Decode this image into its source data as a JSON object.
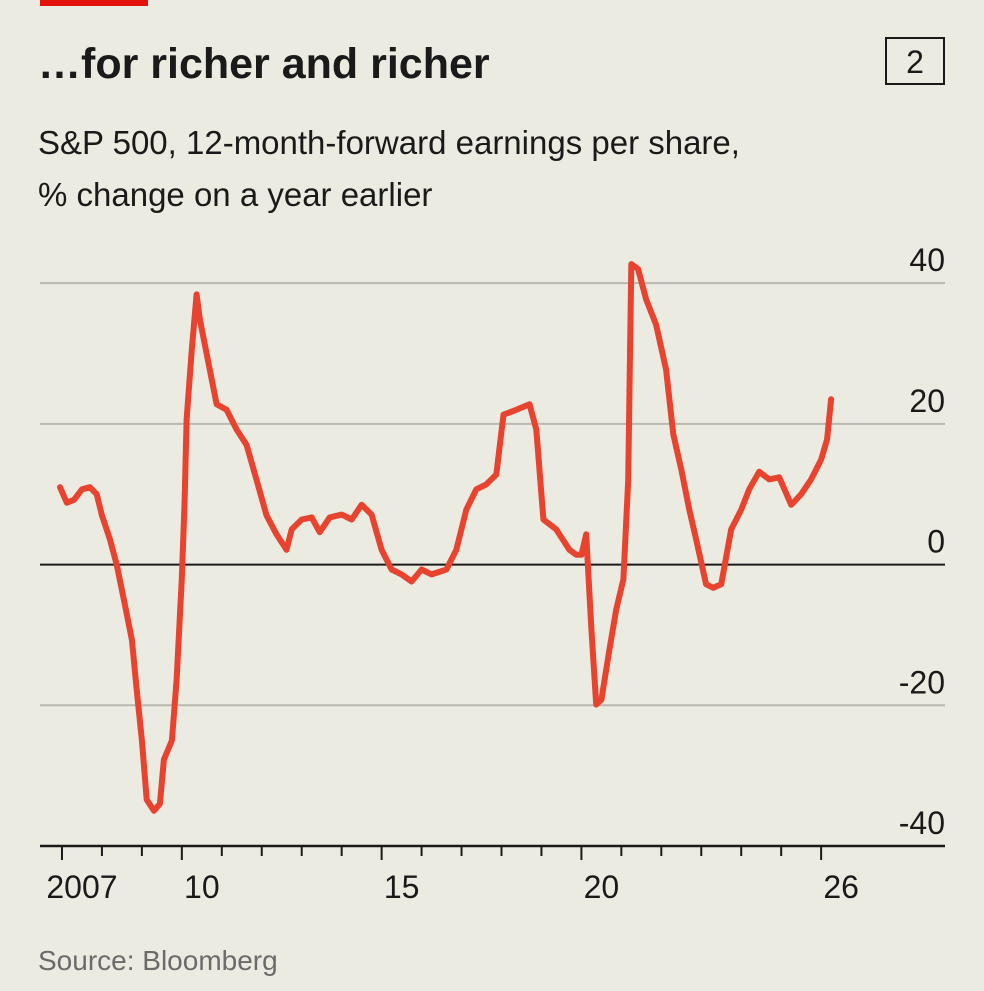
{
  "chart_data": {
    "type": "line",
    "title": "…for richer and richer",
    "badge": "2",
    "subtitle": [
      "S&P 500, 12-month-forward earnings per share,",
      "% change on a year earlier"
    ],
    "source": "Source: Bloomberg",
    "color": "#e8432e",
    "x": [
      2006.95,
      2007.12,
      2007.3,
      2007.5,
      2007.7,
      2007.87,
      2008.0,
      2008.2,
      2008.37,
      2008.55,
      2008.75,
      2008.87,
      2009.0,
      2009.12,
      2009.3,
      2009.45,
      2009.55,
      2009.75,
      2009.87,
      2010.0,
      2010.07,
      2010.12,
      2010.25,
      2010.37,
      2010.45,
      2010.55,
      2010.7,
      2010.87,
      2011.12,
      2011.37,
      2011.62,
      2011.87,
      2012.12,
      2012.37,
      2012.62,
      2012.75,
      2013.0,
      2013.25,
      2013.45,
      2013.7,
      2014.0,
      2014.25,
      2014.5,
      2014.75,
      2015.0,
      2015.25,
      2015.5,
      2015.75,
      2016.0,
      2016.25,
      2016.62,
      2016.87,
      2017.12,
      2017.37,
      2017.62,
      2017.87,
      2018.05,
      2018.37,
      2018.7,
      2018.87,
      2019.05,
      2019.37,
      2019.7,
      2019.87,
      2020.0,
      2020.12,
      2020.25,
      2020.37,
      2020.5,
      2020.7,
      2020.87,
      2021.05,
      2021.17,
      2021.25,
      2021.42,
      2021.62,
      2021.87,
      2022.12,
      2022.3,
      2022.5,
      2022.7,
      2022.87,
      2023.12,
      2023.3,
      2023.5,
      2023.75,
      2024.0,
      2024.2,
      2024.45,
      2024.7,
      2024.95,
      2025.25,
      2025.5,
      2025.75,
      2026.0,
      2026.15,
      2026.25
    ],
    "values": [
      11,
      8.8,
      9.2,
      10.7,
      11,
      10,
      7,
      3.6,
      0,
      -5,
      -10.7,
      -17.8,
      -25,
      -33.4,
      -35,
      -34,
      -27.7,
      -25,
      -16.4,
      -2,
      9,
      20.6,
      30.6,
      38.4,
      34.9,
      32,
      27.7,
      22.8,
      22,
      19.2,
      17,
      12,
      7,
      4.3,
      2.1,
      5,
      6.4,
      6.7,
      4.6,
      6.7,
      7.1,
      6.4,
      8.5,
      7.1,
      2.1,
      -0.7,
      -1.4,
      -2.4,
      -0.7,
      -1.4,
      -0.7,
      2.1,
      7.8,
      10.7,
      11.4,
      12.8,
      21.3,
      22,
      22.8,
      19.2,
      6.4,
      5,
      2.1,
      1.4,
      1.4,
      4.3,
      -9.2,
      -19.9,
      -19.2,
      -12.1,
      -6.4,
      -2.1,
      12,
      42.7,
      42,
      37.7,
      34.1,
      27.7,
      18.5,
      13.5,
      7.8,
      3.6,
      -2.8,
      -3.3,
      -2.8,
      5,
      7.8,
      10.7,
      13.2,
      12.1,
      12.4,
      8.5,
      10,
      12.1,
      14.9,
      17.8,
      23.5
    ],
    "xlim": [
      2006.45,
      2029.1
    ],
    "xticks": [
      2007,
      {
        "value": 2010,
        "label": "10"
      },
      {
        "value": 2015,
        "label": "15"
      },
      {
        "value": 2020,
        "label": "20"
      },
      {
        "value": 2026,
        "label": "26"
      }
    ],
    "xminorticks": [
      2008,
      2009,
      2011,
      2012,
      2013,
      2014,
      2016,
      2017,
      2018,
      2019,
      2021,
      2022,
      2023,
      2024,
      2025
    ],
    "ylim": [
      -40,
      44
    ],
    "yticks": [
      40,
      20,
      0,
      -20,
      -40
    ],
    "grid": true
  }
}
